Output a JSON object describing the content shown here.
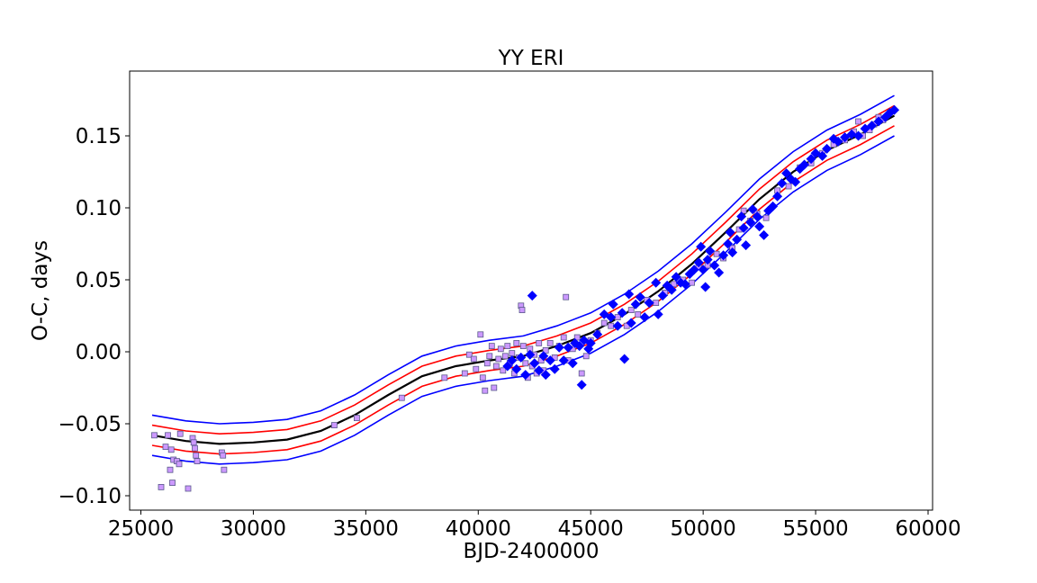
{
  "chart_data": {
    "type": "scatter",
    "title": "YY ERI",
    "xlabel": "BJD-2400000",
    "ylabel": "O-C, days",
    "xlim": [
      24500,
      60200
    ],
    "ylim": [
      -0.11,
      0.195
    ],
    "xticks": [
      25000,
      30000,
      35000,
      40000,
      45000,
      50000,
      55000,
      60000
    ],
    "xtick_labels": [
      "25000",
      "30000",
      "35000",
      "40000",
      "45000",
      "50000",
      "55000",
      "60000"
    ],
    "yticks": [
      -0.1,
      -0.05,
      0.0,
      0.05,
      0.1,
      0.15
    ],
    "ytick_labels": [
      "−0.10",
      "−0.05",
      "0.00",
      "0.05",
      "0.10",
      "0.15"
    ],
    "grid": false,
    "colors": {
      "fit": "#000000",
      "band_inner": "#ff0000",
      "band_outer": "#0000ff",
      "square_fill": "#cc99ff",
      "diamond_fill": "#0000ff"
    },
    "series": [
      {
        "marker": "square",
        "points": [
          [
            25600,
            -0.058
          ],
          [
            25900,
            -0.094
          ],
          [
            26100,
            -0.066
          ],
          [
            26200,
            -0.058
          ],
          [
            26300,
            -0.082
          ],
          [
            26350,
            -0.068
          ],
          [
            26400,
            -0.091
          ],
          [
            26450,
            -0.075
          ],
          [
            26600,
            -0.076
          ],
          [
            26700,
            -0.078
          ],
          [
            26750,
            -0.057
          ],
          [
            27100,
            -0.095
          ],
          [
            27300,
            -0.06
          ],
          [
            27350,
            -0.063
          ],
          [
            27400,
            -0.067
          ],
          [
            27450,
            -0.072
          ],
          [
            27500,
            -0.076
          ],
          [
            28600,
            -0.07
          ],
          [
            28650,
            -0.072
          ],
          [
            28700,
            -0.082
          ],
          [
            33600,
            -0.051
          ],
          [
            34600,
            -0.046
          ],
          [
            36600,
            -0.032
          ],
          [
            38500,
            -0.018
          ],
          [
            39400,
            -0.015
          ],
          [
            39600,
            -0.002
          ],
          [
            39800,
            -0.005
          ],
          [
            39900,
            -0.012
          ],
          [
            40100,
            0.012
          ],
          [
            40200,
            -0.018
          ],
          [
            40300,
            -0.027
          ],
          [
            40400,
            -0.008
          ],
          [
            40500,
            -0.003
          ],
          [
            40600,
            0.004
          ],
          [
            40700,
            -0.025
          ],
          [
            40800,
            -0.01
          ],
          [
            40900,
            -0.005
          ],
          [
            41000,
            0.002
          ],
          [
            41100,
            -0.013
          ],
          [
            41200,
            -0.003
          ],
          [
            41300,
            0.004
          ],
          [
            41400,
            -0.008
          ],
          [
            41500,
            -0.001
          ],
          [
            41600,
            -0.015
          ],
          [
            41700,
            0.006
          ],
          [
            41800,
            -0.004
          ],
          [
            41900,
            0.032
          ],
          [
            41950,
            0.029
          ],
          [
            42000,
            0.004
          ],
          [
            42100,
            -0.008
          ],
          [
            42200,
            -0.018
          ],
          [
            42300,
            0.002
          ],
          [
            42400,
            -0.01
          ],
          [
            42500,
            -0.002
          ],
          [
            42600,
            -0.015
          ],
          [
            42700,
            0.006
          ],
          [
            42800,
            -0.006
          ],
          [
            42900,
            -0.013
          ],
          [
            43000,
            0.001
          ],
          [
            43200,
            0.006
          ],
          [
            43400,
            -0.004
          ],
          [
            43600,
            0.004
          ],
          [
            43800,
            0.01
          ],
          [
            43900,
            0.038
          ],
          [
            44000,
            -0.006
          ],
          [
            44200,
            0.002
          ],
          [
            44400,
            0.01
          ],
          [
            44600,
            -0.015
          ],
          [
            44800,
            -0.003
          ],
          [
            45000,
            0.008
          ],
          [
            45300,
            0.013
          ],
          [
            45600,
            0.02
          ],
          [
            45900,
            0.018
          ],
          [
            46200,
            0.024
          ],
          [
            46600,
            0.018
          ],
          [
            46800,
            0.029
          ],
          [
            47100,
            0.026
          ],
          [
            47500,
            0.036
          ],
          [
            47900,
            0.034
          ],
          [
            48300,
            0.041
          ],
          [
            48700,
            0.047
          ],
          [
            49100,
            0.05
          ],
          [
            49500,
            0.048
          ],
          [
            49800,
            0.059
          ],
          [
            50200,
            0.06
          ],
          [
            50600,
            0.068
          ],
          [
            50900,
            0.065
          ],
          [
            51300,
            0.072
          ],
          [
            51600,
            0.085
          ],
          [
            51800,
            0.098
          ],
          [
            52100,
            0.091
          ],
          [
            52400,
            0.096
          ],
          [
            52800,
            0.093
          ],
          [
            53300,
            0.112
          ],
          [
            53800,
            0.115
          ],
          [
            54300,
            0.128
          ],
          [
            54800,
            0.131
          ],
          [
            55300,
            0.138
          ],
          [
            55800,
            0.144
          ],
          [
            56300,
            0.147
          ],
          [
            56700,
            0.153
          ],
          [
            56900,
            0.16
          ],
          [
            57100,
            0.15
          ],
          [
            57400,
            0.154
          ],
          [
            57600,
            0.158
          ],
          [
            57800,
            0.163
          ],
          [
            58000,
            0.161
          ],
          [
            58300,
            0.166
          ]
        ]
      },
      {
        "marker": "diamond",
        "points": [
          [
            41300,
            -0.01
          ],
          [
            41500,
            -0.006
          ],
          [
            41700,
            -0.012
          ],
          [
            41900,
            -0.004
          ],
          [
            42100,
            -0.016
          ],
          [
            42300,
            -0.002
          ],
          [
            42400,
            0.039
          ],
          [
            42500,
            -0.008
          ],
          [
            42700,
            -0.013
          ],
          [
            42900,
            -0.003
          ],
          [
            43000,
            -0.016
          ],
          [
            43200,
            -0.006
          ],
          [
            43400,
            -0.012
          ],
          [
            43600,
            0.003
          ],
          [
            43800,
            -0.006
          ],
          [
            44000,
            0.003
          ],
          [
            44200,
            -0.008
          ],
          [
            44300,
            0.006
          ],
          [
            44500,
            0.004
          ],
          [
            44600,
            -0.023
          ],
          [
            44700,
            0.008
          ],
          [
            44900,
            0.002
          ],
          [
            45000,
            0.006
          ],
          [
            45300,
            0.012
          ],
          [
            45600,
            0.026
          ],
          [
            45900,
            0.024
          ],
          [
            46000,
            0.033
          ],
          [
            46200,
            0.018
          ],
          [
            46400,
            0.027
          ],
          [
            46500,
            -0.005
          ],
          [
            46700,
            0.04
          ],
          [
            46800,
            0.02
          ],
          [
            47000,
            0.033
          ],
          [
            47200,
            0.038
          ],
          [
            47400,
            0.024
          ],
          [
            47600,
            0.034
          ],
          [
            47900,
            0.048
          ],
          [
            48000,
            0.026
          ],
          [
            48200,
            0.039
          ],
          [
            48400,
            0.046
          ],
          [
            48600,
            0.043
          ],
          [
            48800,
            0.052
          ],
          [
            49000,
            0.048
          ],
          [
            49200,
            0.047
          ],
          [
            49400,
            0.054
          ],
          [
            49600,
            0.057
          ],
          [
            49800,
            0.062
          ],
          [
            49900,
            0.073
          ],
          [
            50000,
            0.057
          ],
          [
            50100,
            0.045
          ],
          [
            50200,
            0.064
          ],
          [
            50300,
            0.07
          ],
          [
            50500,
            0.06
          ],
          [
            50700,
            0.055
          ],
          [
            50900,
            0.067
          ],
          [
            51100,
            0.075
          ],
          [
            51200,
            0.083
          ],
          [
            51300,
            0.069
          ],
          [
            51500,
            0.078
          ],
          [
            51700,
            0.094
          ],
          [
            51800,
            0.086
          ],
          [
            51900,
            0.074
          ],
          [
            52100,
            0.09
          ],
          [
            52200,
            0.099
          ],
          [
            52400,
            0.094
          ],
          [
            52500,
            0.087
          ],
          [
            52700,
            0.081
          ],
          [
            52900,
            0.098
          ],
          [
            53100,
            0.101
          ],
          [
            53300,
            0.108
          ],
          [
            53500,
            0.117
          ],
          [
            53700,
            0.124
          ],
          [
            53900,
            0.12
          ],
          [
            54100,
            0.118
          ],
          [
            54300,
            0.127
          ],
          [
            54500,
            0.13
          ],
          [
            54800,
            0.134
          ],
          [
            55000,
            0.138
          ],
          [
            55300,
            0.136
          ],
          [
            55500,
            0.141
          ],
          [
            55800,
            0.148
          ],
          [
            56000,
            0.146
          ],
          [
            56300,
            0.149
          ],
          [
            56600,
            0.151
          ],
          [
            56900,
            0.15
          ],
          [
            57200,
            0.155
          ],
          [
            57500,
            0.157
          ],
          [
            57800,
            0.16
          ],
          [
            58100,
            0.163
          ],
          [
            58300,
            0.166
          ],
          [
            58500,
            0.168
          ]
        ]
      }
    ],
    "fit_curve": {
      "x": [
        25500,
        27000,
        28500,
        30000,
        31500,
        33000,
        34500,
        36000,
        37500,
        39000,
        40500,
        42000,
        43500,
        45000,
        46500,
        48000,
        49500,
        51000,
        52500,
        54000,
        55500,
        57000,
        58500
      ],
      "center": [
        -0.058,
        -0.062,
        -0.064,
        -0.063,
        -0.061,
        -0.055,
        -0.044,
        -0.03,
        -0.017,
        -0.01,
        -0.006,
        -0.003,
        0.004,
        0.013,
        0.026,
        0.042,
        0.061,
        0.083,
        0.106,
        0.125,
        0.14,
        0.151,
        0.164
      ],
      "band_inner": 0.007,
      "band_outer": 0.014
    }
  }
}
